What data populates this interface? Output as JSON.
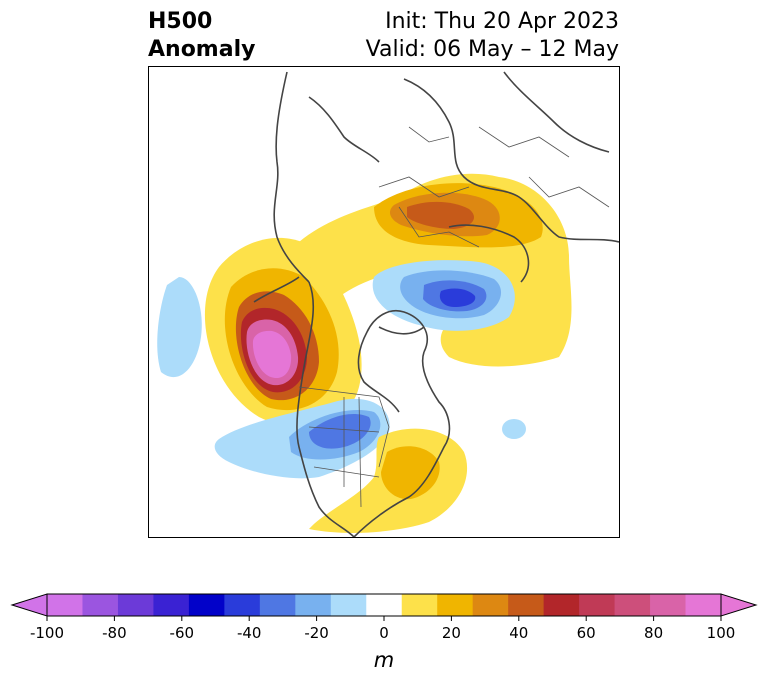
{
  "title": {
    "left_line1": "H500",
    "left_line2": "Anomaly",
    "right_line1": "Init: Thu 20 Apr 2023",
    "right_line2": "Valid: 06 May – 12 May"
  },
  "colorbar": {
    "unit": "m",
    "ticks": [
      "-100",
      "-80",
      "-60",
      "-40",
      "-20",
      "0",
      "20",
      "40",
      "60",
      "80",
      "100"
    ],
    "levels": [
      -100,
      -90,
      -80,
      -70,
      -60,
      -50,
      -40,
      -30,
      -20,
      -10,
      10,
      20,
      30,
      40,
      50,
      60,
      70,
      80,
      90,
      100
    ],
    "colors": [
      "#d173e8",
      "#9b55e0",
      "#6c3ad8",
      "#3a22d3",
      "#0202c9",
      "#2a3cda",
      "#4f77e3",
      "#78b1ef",
      "#acdcfa",
      "#ffffff",
      "#fde14a",
      "#f0b500",
      "#dd8812",
      "#c65a19",
      "#b2262a",
      "#c03a56",
      "#cd4f7b",
      "#d963a8",
      "#e576d6"
    ],
    "extend_min_color": "#d173e8",
    "extend_max_color": "#e576d6"
  }
}
